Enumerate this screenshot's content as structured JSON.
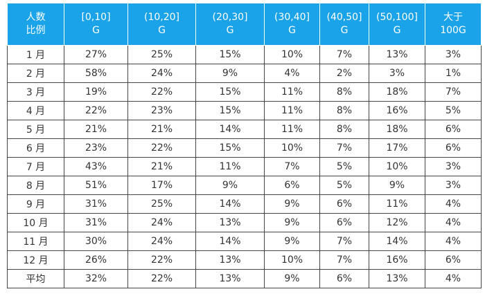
{
  "table": {
    "headers": [
      {
        "line1": "人数",
        "line2": "比例"
      },
      {
        "line1": "[0,10]",
        "line2": "G"
      },
      {
        "line1": "(10,20]",
        "line2": "G"
      },
      {
        "line1": "(20,30]",
        "line2": "G"
      },
      {
        "line1": "(30,40]",
        "line2": "G"
      },
      {
        "line1": "(40,50]",
        "line2": "G"
      },
      {
        "line1": "(50,100]",
        "line2": "G"
      },
      {
        "line1": "大于",
        "line2": "100G"
      }
    ],
    "rows": [
      [
        "1 月",
        "27%",
        "25%",
        "15%",
        "10%",
        "7%",
        "13%",
        "3%"
      ],
      [
        "2 月",
        "58%",
        "24%",
        "9%",
        "4%",
        "2%",
        "3%",
        "1%"
      ],
      [
        "3 月",
        "19%",
        "22%",
        "15%",
        "11%",
        "8%",
        "18%",
        "7%"
      ],
      [
        "4 月",
        "22%",
        "23%",
        "15%",
        "11%",
        "8%",
        "16%",
        "5%"
      ],
      [
        "5 月",
        "21%",
        "21%",
        "14%",
        "11%",
        "8%",
        "18%",
        "6%"
      ],
      [
        "6 月",
        "23%",
        "22%",
        "15%",
        "10%",
        "7%",
        "17%",
        "6%"
      ],
      [
        "7 月",
        "43%",
        "21%",
        "11%",
        "7%",
        "5%",
        "10%",
        "3%"
      ],
      [
        "8 月",
        "51%",
        "17%",
        "9%",
        "6%",
        "5%",
        "9%",
        "3%"
      ],
      [
        "9 月",
        "31%",
        "25%",
        "14%",
        "9%",
        "6%",
        "11%",
        "4%"
      ],
      [
        "10 月",
        "31%",
        "24%",
        "13%",
        "9%",
        "6%",
        "12%",
        "4%"
      ],
      [
        "11 月",
        "30%",
        "24%",
        "14%",
        "9%",
        "7%",
        "14%",
        "4%"
      ],
      [
        "12 月",
        "26%",
        "22%",
        "13%",
        "10%",
        "7%",
        "16%",
        "6%"
      ],
      [
        "平均",
        "32%",
        "22%",
        "13%",
        "9%",
        "6%",
        "13%",
        "4%"
      ]
    ]
  },
  "colors": {
    "header_bg": "#1aa3e8",
    "header_text": "#ffffff",
    "border": "#444444",
    "cell_text": "#333333"
  }
}
